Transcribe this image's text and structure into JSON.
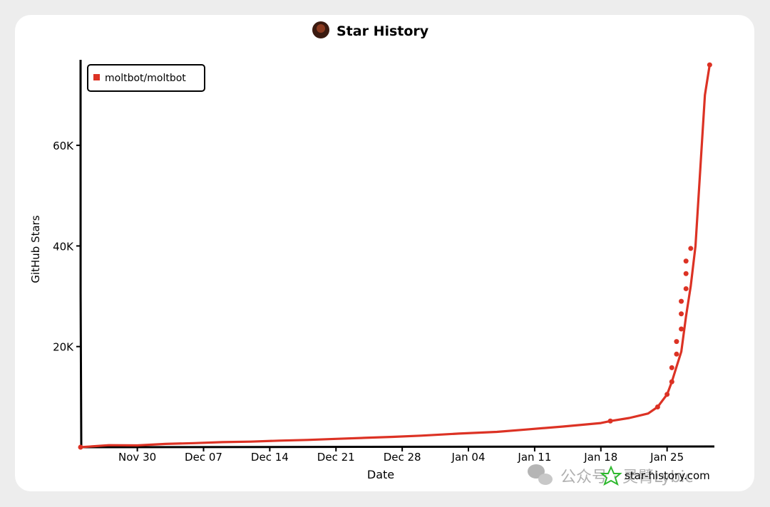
{
  "chart_data": {
    "type": "line",
    "title": "Star History",
    "xlabel": "Date",
    "ylabel": "GitHub Stars",
    "x_ticks": [
      "Nov 30",
      "Dec 07",
      "Dec 14",
      "Dec 21",
      "Dec 28",
      "Jan 04",
      "Jan 11",
      "Jan 18",
      "Jan 25"
    ],
    "y_ticks": [
      "20K",
      "40K",
      "60K"
    ],
    "y_tick_values": [
      20000,
      40000,
      60000
    ],
    "xlim": [
      "2025-11-24",
      "2026-01-30"
    ],
    "ylim": [
      0,
      77000
    ],
    "grid": false,
    "legend_position": "top-left",
    "series": [
      {
        "name": "moltbot/moltbot",
        "color": "#dc3224",
        "points": [
          [
            "2025-11-24",
            0
          ],
          [
            "2025-11-27",
            400
          ],
          [
            "2025-11-30",
            350
          ],
          [
            "2025-12-03",
            650
          ],
          [
            "2025-12-06",
            800
          ],
          [
            "2025-12-09",
            1000
          ],
          [
            "2025-12-12",
            1100
          ],
          [
            "2025-12-15",
            1300
          ],
          [
            "2025-12-18",
            1450
          ],
          [
            "2025-12-21",
            1650
          ],
          [
            "2025-12-24",
            1850
          ],
          [
            "2025-12-27",
            2050
          ],
          [
            "2025-12-30",
            2300
          ],
          [
            "2026-01-03",
            2700
          ],
          [
            "2026-01-07",
            3050
          ],
          [
            "2026-01-10",
            3500
          ],
          [
            "2026-01-14",
            4100
          ],
          [
            "2026-01-18",
            4800
          ],
          [
            "2026-01-19",
            5200
          ],
          [
            "2026-01-21",
            5800
          ],
          [
            "2026-01-23",
            6700
          ],
          [
            "2026-01-24",
            8000
          ],
          [
            "2026-01-25",
            10500
          ],
          [
            "2026-01-25.5",
            13000
          ],
          [
            "2026-01-26",
            16000
          ],
          [
            "2026-01-26.5",
            19000
          ],
          [
            "2026-01-27",
            26000
          ],
          [
            "2026-01-27.5",
            32000
          ],
          [
            "2026-01-28",
            40000
          ],
          [
            "2026-01-28.5",
            55000
          ],
          [
            "2026-01-29",
            70000
          ],
          [
            "2026-01-29.5",
            76000
          ]
        ]
      }
    ],
    "markers": [
      [
        "2026-01-19",
        5200
      ],
      [
        "2026-01-24",
        8000
      ],
      [
        "2026-01-25",
        10500
      ],
      [
        "2026-01-25.5",
        13000
      ],
      [
        "2026-01-25.5",
        15800
      ],
      [
        "2026-01-26",
        18500
      ],
      [
        "2026-01-26",
        21000
      ],
      [
        "2026-01-26.5",
        23500
      ],
      [
        "2026-01-26.5",
        26500
      ],
      [
        "2026-01-26.5",
        29000
      ],
      [
        "2026-01-27",
        31500
      ],
      [
        "2026-01-27",
        34500
      ],
      [
        "2026-01-27",
        37000
      ],
      [
        "2026-01-27.5",
        39500
      ],
      [
        "2026-01-29.5",
        76000
      ]
    ]
  },
  "footer": {
    "site": "star-history.com",
    "watermark": "公众号 · 灵臂Lybic"
  },
  "colors": {
    "line": "#dc3224",
    "axis": "#000000",
    "background": "#ffffff",
    "page": "#ededed"
  },
  "icons": [
    "avatar-icon",
    "star-history-logo-icon",
    "wechat-icon"
  ]
}
